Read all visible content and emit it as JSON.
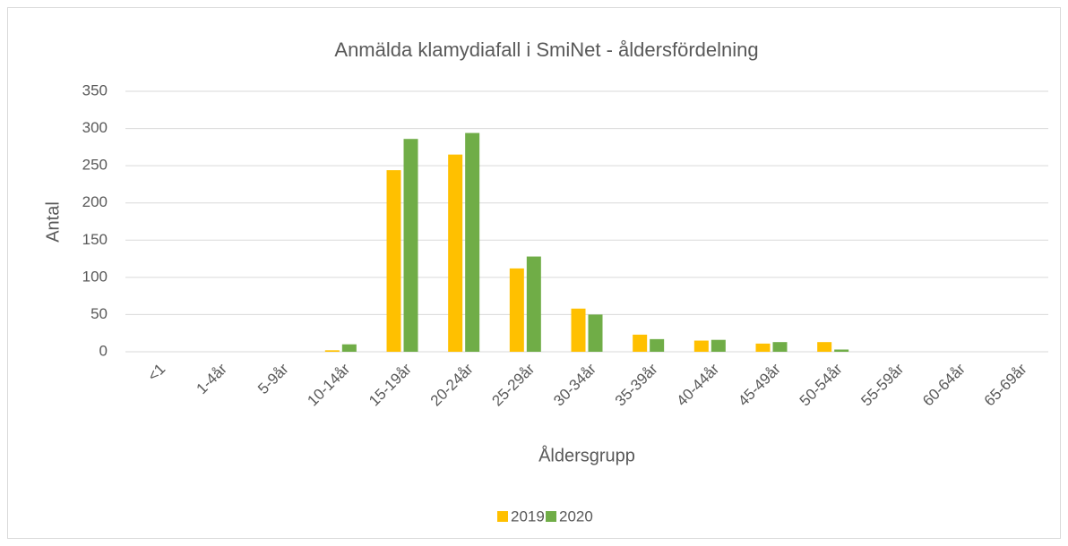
{
  "chart_data": {
    "type": "bar",
    "title": "Anmälda klamydiafall i SmiNet - åldersfördelning",
    "x_label": "Åldersgrupp",
    "y_label": "Antal",
    "categories": [
      "<1",
      "1-4år",
      "5-9år",
      "10-14år",
      "15-19år",
      "20-24år",
      "25-29år",
      "30-34år",
      "35-39år",
      "40-44år",
      "45-49år",
      "50-54år",
      "55-59år",
      "60-64år",
      "65-69år"
    ],
    "series": [
      {
        "name": "2019",
        "color": "#ffc000",
        "values": [
          0,
          0,
          0,
          2,
          244,
          265,
          112,
          58,
          23,
          15,
          11,
          13,
          0,
          0,
          0
        ]
      },
      {
        "name": "2020",
        "color": "#70ad47",
        "values": [
          0,
          0,
          0,
          10,
          286,
          294,
          128,
          50,
          17,
          16,
          13,
          3,
          0,
          0,
          0
        ]
      }
    ],
    "ylim": [
      0,
      350
    ],
    "yticks": [
      0,
      50,
      100,
      150,
      200,
      250,
      300,
      350
    ],
    "grid": true,
    "legend": "bottom"
  }
}
